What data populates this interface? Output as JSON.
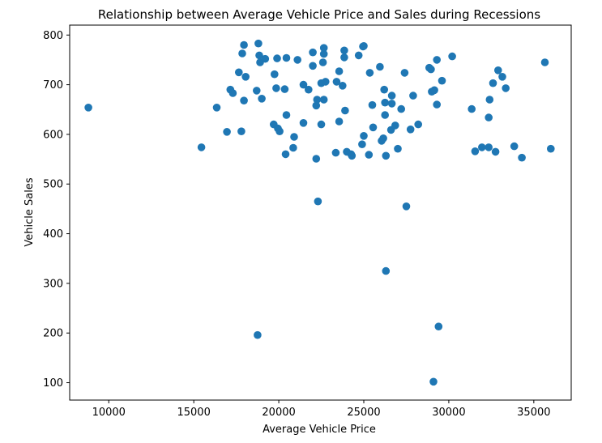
{
  "chart_data": {
    "type": "scatter",
    "title": "Relationship between Average Vehicle Price and Sales during Recessions",
    "xlabel": "Average Vehicle Price",
    "ylabel": "Vehicle Sales",
    "xlim": [
      7700,
      37200
    ],
    "ylim": [
      65,
      820
    ],
    "xticks": [
      10000,
      15000,
      20000,
      25000,
      30000,
      35000
    ],
    "yticks": [
      100,
      200,
      300,
      400,
      500,
      600,
      700,
      800
    ],
    "grid": false,
    "marker_color": "#1f77b4",
    "points": [
      [
        8800,
        654
      ],
      [
        15450,
        574
      ],
      [
        16350,
        654
      ],
      [
        16950,
        605
      ],
      [
        17150,
        690
      ],
      [
        17300,
        683
      ],
      [
        17650,
        725
      ],
      [
        17800,
        606
      ],
      [
        17850,
        763
      ],
      [
        17950,
        780
      ],
      [
        17950,
        668
      ],
      [
        18050,
        716
      ],
      [
        18700,
        688
      ],
      [
        18750,
        196
      ],
      [
        18800,
        783
      ],
      [
        18850,
        759
      ],
      [
        18900,
        745
      ],
      [
        19000,
        672
      ],
      [
        19200,
        752
      ],
      [
        19700,
        620
      ],
      [
        19750,
        721
      ],
      [
        19850,
        693
      ],
      [
        19900,
        753
      ],
      [
        19950,
        612
      ],
      [
        20050,
        606
      ],
      [
        20350,
        691
      ],
      [
        20400,
        560
      ],
      [
        20450,
        754
      ],
      [
        20450,
        639
      ],
      [
        20850,
        573
      ],
      [
        20900,
        595
      ],
      [
        21100,
        750
      ],
      [
        21450,
        700
      ],
      [
        21450,
        623
      ],
      [
        21750,
        690
      ],
      [
        22000,
        765
      ],
      [
        22000,
        738
      ],
      [
        22200,
        551
      ],
      [
        22200,
        658
      ],
      [
        22250,
        670
      ],
      [
        22300,
        465
      ],
      [
        22500,
        620
      ],
      [
        22500,
        703
      ],
      [
        22600,
        745
      ],
      [
        22650,
        762
      ],
      [
        22650,
        774
      ],
      [
        22650,
        670
      ],
      [
        22750,
        706
      ],
      [
        23350,
        563
      ],
      [
        23400,
        706
      ],
      [
        23550,
        727
      ],
      [
        23550,
        626
      ],
      [
        23750,
        698
      ],
      [
        23850,
        755
      ],
      [
        23850,
        769
      ],
      [
        23900,
        648
      ],
      [
        24000,
        565
      ],
      [
        24250,
        560
      ],
      [
        24300,
        557
      ],
      [
        24700,
        759
      ],
      [
        24900,
        580
      ],
      [
        24950,
        777
      ],
      [
        25000,
        778
      ],
      [
        25000,
        597
      ],
      [
        25300,
        559
      ],
      [
        25350,
        724
      ],
      [
        25500,
        659
      ],
      [
        25550,
        614
      ],
      [
        25950,
        736
      ],
      [
        26050,
        587
      ],
      [
        26150,
        592
      ],
      [
        26200,
        690
      ],
      [
        26250,
        664
      ],
      [
        26250,
        639
      ],
      [
        26300,
        325
      ],
      [
        26300,
        557
      ],
      [
        26600,
        609
      ],
      [
        26650,
        678
      ],
      [
        26650,
        662
      ],
      [
        26850,
        618
      ],
      [
        27000,
        571
      ],
      [
        27200,
        651
      ],
      [
        27400,
        724
      ],
      [
        27500,
        455
      ],
      [
        27750,
        610
      ],
      [
        27900,
        678
      ],
      [
        28200,
        620
      ],
      [
        28850,
        734
      ],
      [
        28950,
        731
      ],
      [
        29000,
        686
      ],
      [
        29150,
        689
      ],
      [
        29300,
        750
      ],
      [
        29300,
        660
      ],
      [
        29400,
        213
      ],
      [
        29600,
        708
      ],
      [
        29100,
        102
      ],
      [
        30200,
        757
      ],
      [
        31350,
        651
      ],
      [
        31550,
        566
      ],
      [
        31950,
        574
      ],
      [
        32350,
        574
      ],
      [
        32350,
        634
      ],
      [
        32400,
        670
      ],
      [
        32600,
        703
      ],
      [
        32750,
        565
      ],
      [
        32900,
        729
      ],
      [
        33150,
        716
      ],
      [
        33350,
        693
      ],
      [
        33850,
        576
      ],
      [
        34300,
        553
      ],
      [
        35650,
        745
      ],
      [
        36000,
        571
      ]
    ]
  }
}
